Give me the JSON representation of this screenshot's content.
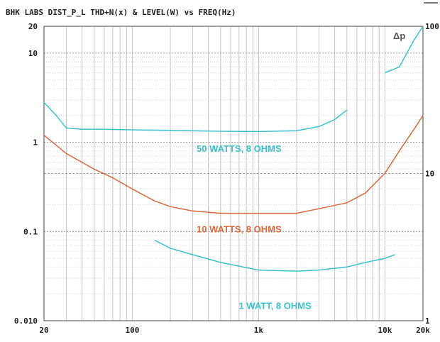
{
  "chart_data": {
    "type": "line",
    "title": "BHK LABS   DIST_P_L THD+N(x) & LEVEL(W) vs FREQ(Hz)",
    "xscale": "log",
    "yscale": "log",
    "xlim": [
      20,
      20000
    ],
    "ylim": [
      0.01,
      20
    ],
    "y2lim": [
      1,
      100
    ],
    "grid": true,
    "x_tick_labels": [
      "20",
      "100",
      "1k",
      "10k",
      "20k"
    ],
    "y_tick_labels": [
      "20",
      "10",
      "1",
      "0.1",
      "0.010"
    ],
    "y2_tick_labels": [
      "100",
      "10",
      "1"
    ],
    "corner_label": "Δp",
    "series": [
      {
        "name": "50 WATTS, 8 OHMS",
        "color": "#3cc0cc",
        "x": [
          20,
          25,
          30,
          40,
          60,
          100,
          200,
          500,
          1000,
          2000,
          3000,
          4000,
          5000
        ],
        "y": [
          2.8,
          2.0,
          1.45,
          1.4,
          1.4,
          1.38,
          1.36,
          1.33,
          1.32,
          1.35,
          1.5,
          1.8,
          2.3
        ]
      },
      {
        "name": "10 WATTS, 8 OHMS",
        "color": "#d86a3c",
        "x": [
          20,
          30,
          50,
          70,
          100,
          150,
          200,
          300,
          500,
          1000,
          2000,
          3000,
          5000,
          7000,
          10000,
          13000,
          17000,
          20000
        ],
        "y": [
          1.2,
          0.75,
          0.5,
          0.4,
          0.3,
          0.22,
          0.19,
          0.17,
          0.16,
          0.16,
          0.16,
          0.18,
          0.21,
          0.27,
          0.45,
          0.8,
          1.4,
          2.0
        ]
      },
      {
        "name": "1 WATT, 8 OHMS",
        "color": "#3cc0cc",
        "x": [
          150,
          200,
          300,
          500,
          1000,
          2000,
          3000,
          5000,
          7000,
          10000,
          12000
        ],
        "y": [
          0.08,
          0.065,
          0.055,
          0.045,
          0.037,
          0.036,
          0.037,
          0.04,
          0.045,
          0.05,
          0.055
        ]
      },
      {
        "name": "",
        "color": "#3cc0cc",
        "x": [
          10000,
          13000,
          17000,
          20000
        ],
        "y": [
          6,
          7,
          14,
          20
        ]
      }
    ]
  }
}
